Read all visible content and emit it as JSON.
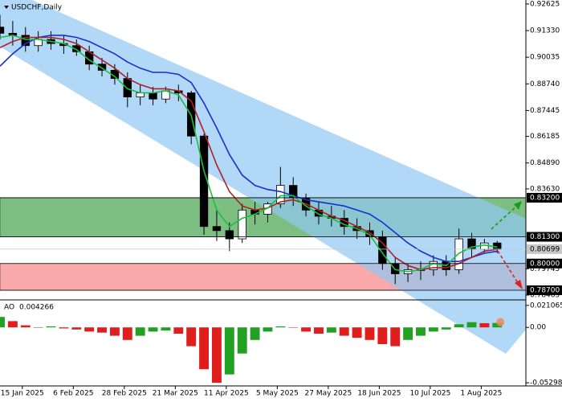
{
  "chart_data": {
    "type": "candlestick",
    "title": "USDCHF,Daily",
    "x": [
      2,
      6,
      10,
      14,
      18,
      22,
      26,
      30,
      34,
      38,
      42,
      46,
      50,
      54,
      58,
      62,
      66,
      70,
      74,
      78,
      82,
      86,
      90,
      94,
      98,
      102,
      106,
      110,
      114,
      118,
      122,
      126,
      130,
      134,
      138,
      142,
      146,
      150,
      154,
      158
    ],
    "open": [
      0.915,
      0.912,
      0.911,
      0.906,
      0.909,
      0.907,
      0.906,
      0.903,
      0.897,
      0.894,
      0.89,
      0.881,
      0.883,
      0.88,
      0.884,
      0.883,
      0.862,
      0.818,
      0.816,
      0.812,
      0.826,
      0.824,
      0.829,
      0.838,
      0.832,
      0.826,
      0.823,
      0.822,
      0.818,
      0.816,
      0.813,
      0.8,
      0.795,
      0.797,
      0.797,
      0.801,
      0.797,
      0.812,
      0.807,
      0.81
    ],
    "high": [
      0.921,
      0.918,
      0.915,
      0.913,
      0.913,
      0.911,
      0.909,
      0.906,
      0.9,
      0.897,
      0.893,
      0.887,
      0.886,
      0.886,
      0.887,
      0.884,
      0.863,
      0.826,
      0.82,
      0.829,
      0.83,
      0.83,
      0.847,
      0.842,
      0.834,
      0.83,
      0.828,
      0.826,
      0.822,
      0.82,
      0.816,
      0.803,
      0.8,
      0.801,
      0.804,
      0.804,
      0.817,
      0.815,
      0.812,
      0.811
    ],
    "low": [
      0.909,
      0.906,
      0.903,
      0.903,
      0.904,
      0.902,
      0.901,
      0.894,
      0.891,
      0.887,
      0.876,
      0.877,
      0.877,
      0.878,
      0.879,
      0.858,
      0.814,
      0.811,
      0.806,
      0.81,
      0.819,
      0.82,
      0.827,
      0.828,
      0.823,
      0.819,
      0.818,
      0.814,
      0.812,
      0.809,
      0.797,
      0.79,
      0.791,
      0.792,
      0.794,
      0.794,
      0.795,
      0.803,
      0.805,
      0.805
    ],
    "close": [
      0.912,
      0.911,
      0.906,
      0.909,
      0.907,
      0.906,
      0.903,
      0.897,
      0.894,
      0.89,
      0.881,
      0.883,
      0.88,
      0.884,
      0.883,
      0.862,
      0.818,
      0.816,
      0.812,
      0.826,
      0.824,
      0.829,
      0.838,
      0.832,
      0.826,
      0.823,
      0.822,
      0.818,
      0.816,
      0.813,
      0.8,
      0.795,
      0.797,
      0.797,
      0.801,
      0.797,
      0.812,
      0.807,
      0.81,
      0.807
    ],
    "up_color": "#ffffff",
    "down_color": "#000000",
    "series": [
      {
        "color": "#1a2fd0",
        "values": [
          0.896,
          0.902,
          0.907,
          0.91,
          0.911,
          0.911,
          0.91,
          0.908,
          0.905,
          0.902,
          0.898,
          0.895,
          0.893,
          0.893,
          0.892,
          0.888,
          0.878,
          0.866,
          0.853,
          0.843,
          0.838,
          0.836,
          0.835,
          0.833,
          0.831,
          0.83,
          0.829,
          0.828,
          0.826,
          0.824,
          0.82,
          0.815,
          0.81,
          0.806,
          0.803,
          0.801,
          0.801,
          0.803,
          0.805,
          0.806
        ]
      },
      {
        "color": "#b0202a",
        "values": [
          0.905,
          0.908,
          0.91,
          0.91,
          0.91,
          0.909,
          0.907,
          0.903,
          0.899,
          0.895,
          0.89,
          0.887,
          0.885,
          0.885,
          0.884,
          0.879,
          0.864,
          0.848,
          0.835,
          0.828,
          0.826,
          0.827,
          0.83,
          0.831,
          0.829,
          0.826,
          0.823,
          0.821,
          0.818,
          0.815,
          0.81,
          0.803,
          0.799,
          0.797,
          0.798,
          0.798,
          0.8,
          0.803,
          0.806,
          0.807
        ]
      },
      {
        "color": "#18c040",
        "values": [
          0.91,
          0.911,
          0.909,
          0.909,
          0.908,
          0.907,
          0.904,
          0.899,
          0.895,
          0.891,
          0.885,
          0.883,
          0.883,
          0.884,
          0.882,
          0.872,
          0.845,
          0.826,
          0.818,
          0.822,
          0.824,
          0.827,
          0.833,
          0.833,
          0.828,
          0.824,
          0.822,
          0.819,
          0.817,
          0.814,
          0.805,
          0.797,
          0.796,
          0.797,
          0.8,
          0.799,
          0.805,
          0.808,
          0.809,
          0.808
        ]
      }
    ],
    "xlim": [
      2,
      167
    ],
    "ylim": [
      0.7827,
      0.9274
    ],
    "xticks": [
      {
        "value": 9,
        "label": "15 Jan 2025"
      },
      {
        "value": 25,
        "label": "6 Feb 2025"
      },
      {
        "value": 41,
        "label": "28 Feb 2025"
      },
      {
        "value": 57,
        "label": "21 Mar 2025"
      },
      {
        "value": 73,
        "label": "11 Apr 2025"
      },
      {
        "value": 89,
        "label": "5 May 2025"
      },
      {
        "value": 105,
        "label": "27 May 2025"
      },
      {
        "value": 121,
        "label": "18 Jun 2025"
      },
      {
        "value": 137,
        "label": "10 Jul 2025"
      },
      {
        "value": 153,
        "label": "1 Aug 2025"
      }
    ],
    "yticks": [
      {
        "value": 0.92625,
        "label": "0.92625"
      },
      {
        "value": 0.9133,
        "label": "0.91330"
      },
      {
        "value": 0.90035,
        "label": "0.90035"
      },
      {
        "value": 0.8874,
        "label": "0.88740"
      },
      {
        "value": 0.87445,
        "label": "0.87445"
      },
      {
        "value": 0.86185,
        "label": "0.86185"
      },
      {
        "value": 0.8489,
        "label": "0.84890"
      },
      {
        "value": 0.8363,
        "label": "0.83630"
      },
      {
        "value": 0.79745,
        "label": "0.79745"
      },
      {
        "value": 0.78465,
        "label": "0.78465"
      }
    ],
    "levels": [
      {
        "value": 0.832,
        "label": "0.83200",
        "color": "#000000"
      },
      {
        "value": 0.813,
        "label": "0.81300",
        "color": "#000000"
      },
      {
        "value": 0.80699,
        "label": "0.80699",
        "color": "#c8c8c8"
      },
      {
        "value": 0.8,
        "label": "0.80000",
        "color": "#000000"
      },
      {
        "value": 0.787,
        "label": "0.78700",
        "color": "#000000"
      }
    ],
    "zones": [
      {
        "from": 0.832,
        "to": 0.813,
        "color": "#7dbf82"
      },
      {
        "from": 0.8,
        "to": 0.787,
        "color": "#f9a9a9"
      }
    ],
    "indicator": {
      "type": "bar",
      "title": "AO",
      "last_value": 0.004266,
      "up_color": "#22a022",
      "down_color": "#e01e1e",
      "values": [
        0.01,
        0.006,
        0.002,
        0.0,
        0.001,
        -0.001,
        -0.002,
        -0.004,
        -0.005,
        -0.008,
        -0.012,
        -0.008,
        -0.004,
        -0.003,
        -0.006,
        -0.018,
        -0.04,
        -0.053,
        -0.045,
        -0.025,
        -0.012,
        -0.004,
        0.001,
        0.0,
        -0.004,
        -0.006,
        -0.005,
        -0.008,
        -0.01,
        -0.012,
        -0.016,
        -0.018,
        -0.012,
        -0.008,
        -0.004,
        -0.002,
        0.003,
        0.005,
        0.004,
        0.004266
      ],
      "ylim": [
        -0.056,
        0.024
      ],
      "yticks": [
        {
          "value": 0.021065,
          "label": "0.021065"
        },
        {
          "value": 0,
          "label": "0.00"
        },
        {
          "value": -0.052982,
          "label": "-0.052982"
        }
      ]
    }
  }
}
